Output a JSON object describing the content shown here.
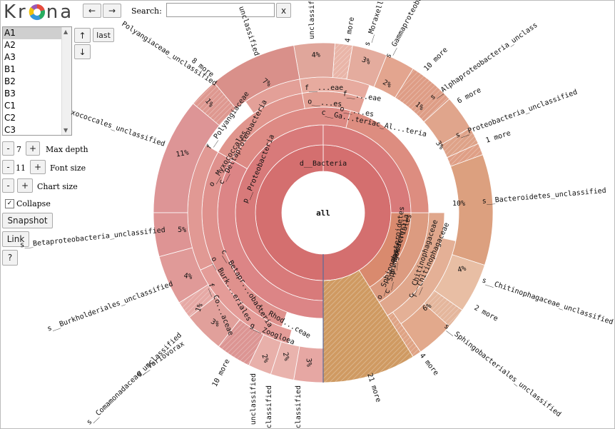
{
  "toolbar": {
    "logo_text_left": "Kr",
    "logo_text_right": "na",
    "back_icon": "left-arrow-icon",
    "forward_icon": "right-arrow-icon",
    "search_label": "Search:",
    "search_value": "",
    "search_clear": "x"
  },
  "datasets": {
    "items": [
      "A1",
      "A2",
      "A3",
      "B1",
      "B2",
      "B3",
      "C1",
      "C2",
      "C3"
    ],
    "selected": "A1",
    "up_label": "↑",
    "down_label": "↓",
    "last_label": "last"
  },
  "controls": {
    "max_depth_label": "Max depth",
    "max_depth_value": "7",
    "font_size_label": "Font size",
    "font_size_value": "11",
    "chart_size_label": "Chart size",
    "minus": "-",
    "plus": "+",
    "collapse_label": "Collapse",
    "collapse_checked": true,
    "snapshot_label": "Snapshot",
    "link_label": "Link",
    "help_label": "?"
  },
  "chart_data": {
    "type": "sunburst",
    "center_label": "all",
    "rings": {
      "domain": [
        {
          "name": "d__Bacteria"
        }
      ],
      "phylum": [
        {
          "name": "p__Proteobacteria"
        },
        {
          "name": "p__Bacteroidetes"
        }
      ],
      "class": [
        {
          "name": "c__Deltaproteobacteria"
        },
        {
          "name": "c__Ga...teriac_Al...teria"
        },
        {
          "name": "c__Betapr...obacteria"
        },
        {
          "name": "c__Sphingobacteriia"
        },
        {
          "name": "c__Chitinophagaceae"
        }
      ],
      "order": [
        {
          "name": "o__Myxococcales"
        },
        {
          "name": "o__...es"
        },
        {
          "name": "o__...es"
        },
        {
          "name": "o__Burk...eriales"
        },
        {
          "name": "o__Sphingobacteriales"
        }
      ],
      "family": [
        {
          "name": "f__Polyangiaceae"
        },
        {
          "name": "f__...eae"
        },
        {
          "name": "f__...eae"
        },
        {
          "name": "f__Co...aceae"
        },
        {
          "name": "f__Rhod...ceae"
        },
        {
          "name": "f__Chitinophagaceae"
        }
      ],
      "genus": [
        {
          "name": "g__Zoogloea"
        },
        {
          "name": "g__Variovorax"
        }
      ]
    },
    "leaves": [
      {
        "label": "Polyangiaceae_unclassified",
        "percent": null
      },
      {
        "label": "8 more",
        "percent": "1%"
      },
      {
        "label": "unclassified",
        "percent": "7%"
      },
      {
        "label": "unclassified",
        "percent": "4%"
      },
      {
        "label": "4 more",
        "percent": null
      },
      {
        "label": "s__Moraxell",
        "percent": "3%"
      },
      {
        "label": "s__Gammaproteobacte",
        "percent": "2%"
      },
      {
        "label": "10 more",
        "percent": "1%"
      },
      {
        "label": "s__Alphaproteobacteria_unclass",
        "percent": null
      },
      {
        "label": "6 more",
        "percent": "3%"
      },
      {
        "label": "s__Proteobacteria_unclassified",
        "percent": null
      },
      {
        "label": "1 more",
        "percent": null
      },
      {
        "label": "s__Bacteroidetes_unclassified",
        "percent": "10%"
      },
      {
        "label": "s__Chitinophagaceae_unclassified",
        "percent": "4%"
      },
      {
        "label": "2 more",
        "percent": "6%"
      },
      {
        "label": "s__Sphingobacteriales_unclassified",
        "percent": null
      },
      {
        "label": "4 more",
        "percent": null
      },
      {
        "label": "21 more",
        "percent": null
      },
      {
        "label": "unclassified",
        "percent": "3%"
      },
      {
        "label": "unclassified",
        "percent": "2%"
      },
      {
        "label": "unclassified",
        "percent": "2%"
      },
      {
        "label": "10 more",
        "percent": "3%"
      },
      {
        "label": "s__Comamonadaceae_unclassified",
        "percent": "1%"
      },
      {
        "label": "g__Variovorax",
        "percent": null
      },
      {
        "label": "s__Burkholderiales_unclassified",
        "percent": "4%"
      },
      {
        "label": "s__Betaproteobacteria_unclassified",
        "percent": "5%"
      },
      {
        "label": "xococcales_unclassified",
        "percent": "11%"
      }
    ],
    "colors": {
      "proteobacteria": "#d87878",
      "bacteroidetes": "#d99070",
      "other": "#c98c4a"
    }
  }
}
